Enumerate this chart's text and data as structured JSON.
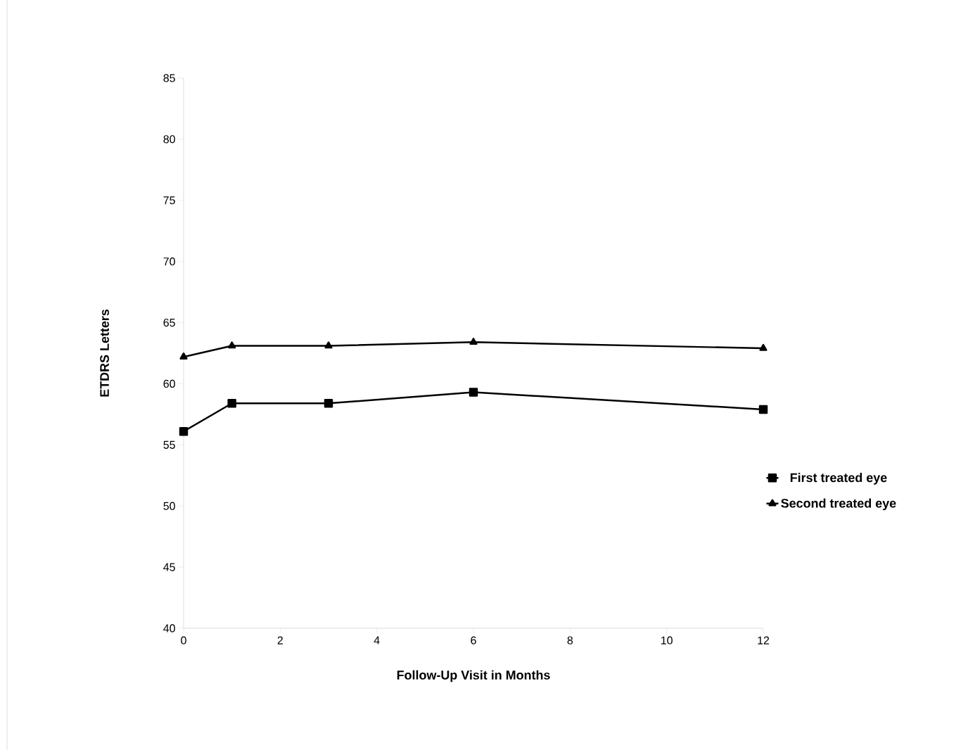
{
  "chart_data": {
    "type": "line",
    "xlabel": "Follow-Up Visit in Months",
    "ylabel": "ETDRS Letters",
    "x": [
      0,
      1,
      3,
      6,
      12
    ],
    "series": [
      {
        "name": "First treated eye",
        "color": "#000000",
        "marker": "square",
        "values": [
          56.1,
          58.4,
          58.4,
          59.3,
          57.9
        ]
      },
      {
        "name": "Second treated eye",
        "color": "#000000",
        "marker": "triangle",
        "values": [
          62.2,
          63.1,
          63.1,
          63.4,
          62.9
        ]
      }
    ],
    "xlim": [
      0,
      12
    ],
    "xticks": [
      0,
      2,
      4,
      6,
      8,
      10,
      12
    ],
    "ylim": [
      40,
      85
    ],
    "yticks": [
      40,
      45,
      50,
      55,
      60,
      65,
      70,
      75,
      80,
      85
    ],
    "grid": false,
    "legend": "right",
    "line_style": "solid"
  }
}
